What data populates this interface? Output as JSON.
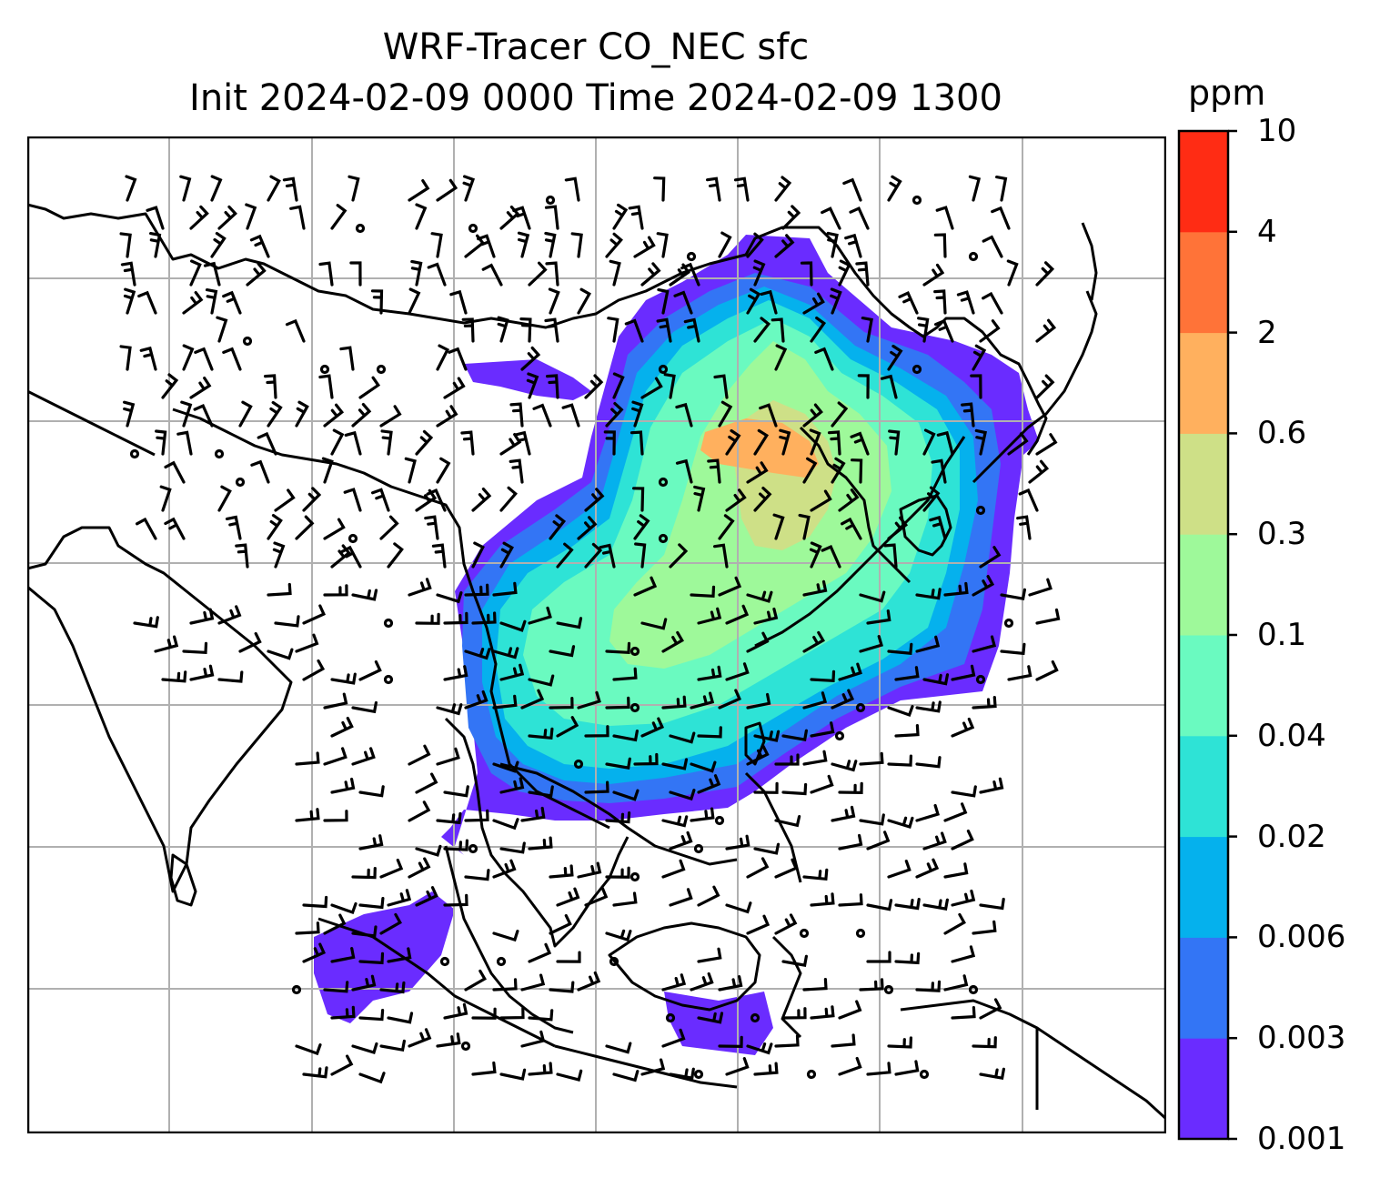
{
  "title": {
    "line1": "WRF-Tracer CO_NEC sfc",
    "line2": "Init 2024-02-09 0000 Time 2024-02-09 1300"
  },
  "colorbar": {
    "unit": "ppm",
    "levels": [
      "0.001",
      "0.003",
      "0.006",
      "0.02",
      "0.04",
      "0.1",
      "0.3",
      "0.6",
      "2",
      "4",
      "10"
    ],
    "colors": [
      "#6a2cff",
      "#3375f5",
      "#05b1ed",
      "#2ee3d6",
      "#6afac0",
      "#9ef99a",
      "#cee087",
      "#ffb05e",
      "#ff7338",
      "#ff2c14"
    ]
  },
  "map": {
    "projection": "lat-lon grid",
    "gridlines": true,
    "field": "CO_NEC surface tracer",
    "overlay": "wind barbs",
    "coastline_color": "#000000",
    "grid_color": "#b0b0b0"
  }
}
